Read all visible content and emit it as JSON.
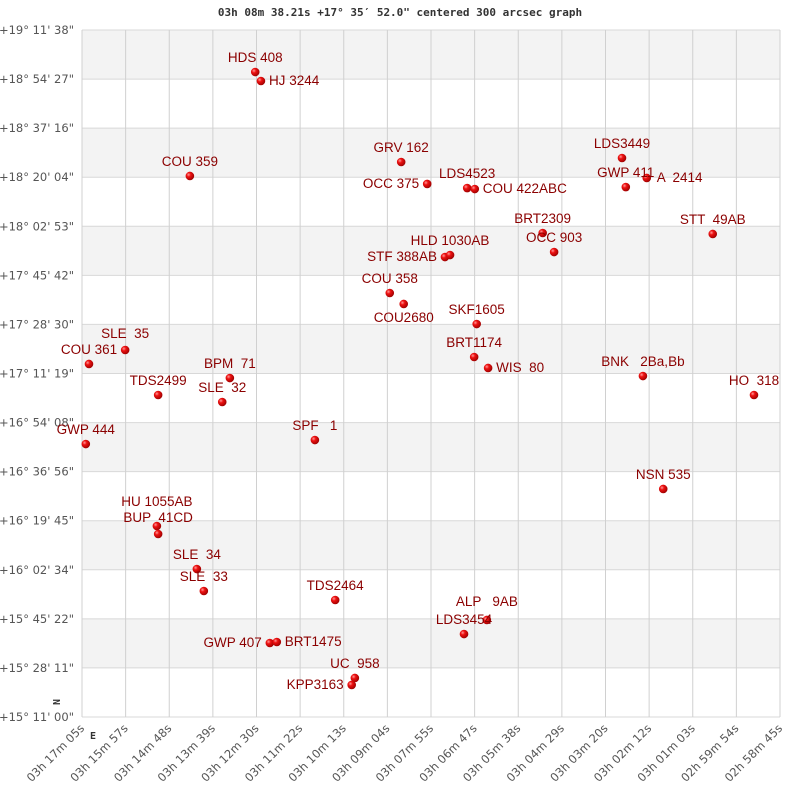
{
  "chart_data": {
    "type": "scatter",
    "title": "03h 08m 38.21s +17° 35′ 52.0\" centered 300 arcsec graph",
    "x_unit": "RA seconds of time",
    "y_unit": "Dec arcseconds",
    "xlim": [
      11825,
      10725
    ],
    "ylim": [
      54660,
      69098
    ],
    "grid": true,
    "x_ticks": [
      "03h 17m 05s",
      "03h 15m 57s",
      "03h 14m 48s",
      "03h 13m 39s",
      "03h 12m 30s",
      "03h 11m 22s",
      "03h 10m 13s",
      "03h 09m 04s",
      "03h 07m 55s",
      "03h 06m 47s",
      "03h 05m 38s",
      "03h 04m 29s",
      "03h 03m 20s",
      "03h 02m 12s",
      "03h 01m 03s",
      "02h 59m 54s",
      "02h 58m 45s"
    ],
    "y_ticks": [
      "+19° 11' 38\"",
      "+18° 54' 27\"",
      "+18° 37' 16\"",
      "+18° 20' 04\"",
      "+18° 02' 53\"",
      "+17° 45' 42\"",
      "+17° 28' 30\"",
      "+17° 11' 19\"",
      "+16° 54' 08\"",
      "+16° 36' 56\"",
      "+16° 19' 45\"",
      "+16° 02' 34\"",
      "+15° 45' 22\"",
      "+15° 28' 11\"",
      "+15° 11' 00\""
    ],
    "compass": {
      "north": "N",
      "east": "E"
    },
    "point_color": "#dd0000",
    "label_color": "#8b0000",
    "points": [
      {
        "name": "HDS 408",
        "ra": 11552,
        "dec": 68215
      },
      {
        "name": "HJ 3244",
        "ra": 11543,
        "dec": 68026
      },
      {
        "name": "COU 359",
        "ra": 11655,
        "dec": 66030
      },
      {
        "name": "GRV 162",
        "ra": 11322,
        "dec": 66324
      },
      {
        "name": "OCC 375",
        "ra": 11281,
        "dec": 65862
      },
      {
        "name": "LDS4523",
        "ra": 11218,
        "dec": 65777
      },
      {
        "name": "COU 422ABC",
        "ra": 11206,
        "dec": 65756
      },
      {
        "name": "LDS3449",
        "ra": 10974,
        "dec": 66408
      },
      {
        "name": "A  2414",
        "ra": 10935,
        "dec": 65988
      },
      {
        "name": "GWP 411",
        "ra": 10968,
        "dec": 65798
      },
      {
        "name": "BRT2309",
        "ra": 11099,
        "dec": 64832
      },
      {
        "name": "OCC 903",
        "ra": 11081,
        "dec": 64432
      },
      {
        "name": "STT  49AB",
        "ra": 10831,
        "dec": 64811
      },
      {
        "name": "STF 388AB",
        "ra": 11253,
        "dec": 64327
      },
      {
        "name": "HLD 1030AB",
        "ra": 11245,
        "dec": 64369
      },
      {
        "name": "COU 358",
        "ra": 11340,
        "dec": 63571
      },
      {
        "name": "COU2680",
        "ra": 11318,
        "dec": 63340
      },
      {
        "name": "SKF1605",
        "ra": 11203,
        "dec": 62919
      },
      {
        "name": "BRT1174",
        "ra": 11207,
        "dec": 62226
      },
      {
        "name": "WIS  80",
        "ra": 11185,
        "dec": 61995
      },
      {
        "name": "BNK   2Ba,Bb",
        "ra": 10941,
        "dec": 61826
      },
      {
        "name": "HO  318",
        "ra": 10766,
        "dec": 61427
      },
      {
        "name": "COU 361",
        "ra": 11814,
        "dec": 62079
      },
      {
        "name": "SLE  35",
        "ra": 11757,
        "dec": 62373
      },
      {
        "name": "TDS2499",
        "ra": 11705,
        "dec": 61427
      },
      {
        "name": "BPM  71",
        "ra": 11592,
        "dec": 61784
      },
      {
        "name": "SLE  32",
        "ra": 11604,
        "dec": 61280
      },
      {
        "name": "SPF   1",
        "ra": 11458,
        "dec": 60481
      },
      {
        "name": "GWP 444",
        "ra": 11819,
        "dec": 60397
      },
      {
        "name": "NSN 535",
        "ra": 10909,
        "dec": 59452
      },
      {
        "name": "HU 1055AB",
        "ra": 11707,
        "dec": 58674
      },
      {
        "name": "BUP  41CD",
        "ra": 11705,
        "dec": 58506
      },
      {
        "name": "SLE  34",
        "ra": 11644,
        "dec": 57770
      },
      {
        "name": "SLE  33",
        "ra": 11633,
        "dec": 57308
      },
      {
        "name": "TDS2464",
        "ra": 11426,
        "dec": 57119
      },
      {
        "name": "ALP   9AB",
        "ra": 11187,
        "dec": 56699
      },
      {
        "name": "LDS3454",
        "ra": 11223,
        "dec": 56404
      },
      {
        "name": "GWP 407",
        "ra": 11529,
        "dec": 56215
      },
      {
        "name": "BRT1475",
        "ra": 11518,
        "dec": 56236
      },
      {
        "name": "UC  958",
        "ra": 11395,
        "dec": 55480
      },
      {
        "name": "KPP3163",
        "ra": 11400,
        "dec": 55333
      }
    ]
  }
}
